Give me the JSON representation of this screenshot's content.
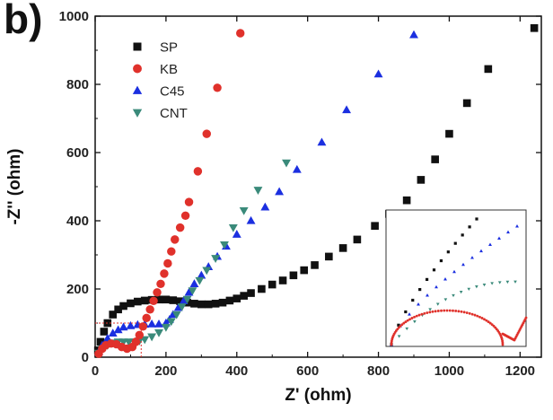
{
  "panel_label": "b)",
  "chart_data": {
    "type": "scatter",
    "xlabel": "Z' (ohm)",
    "ylabel": "-Z'' (ohm)",
    "xlim": [
      0,
      1260
    ],
    "ylim": [
      0,
      1000
    ],
    "xticks": [
      0,
      200,
      400,
      600,
      800,
      1000,
      1200
    ],
    "yticks": [
      0,
      200,
      400,
      600,
      800,
      1000
    ],
    "grid": false,
    "legend_position": "top-left",
    "series": [
      {
        "name": "SP",
        "marker": "square",
        "color": "#111111",
        "points": [
          [
            8,
            20
          ],
          [
            15,
            45
          ],
          [
            25,
            75
          ],
          [
            35,
            100
          ],
          [
            50,
            125
          ],
          [
            65,
            140
          ],
          [
            80,
            150
          ],
          [
            100,
            158
          ],
          [
            120,
            163
          ],
          [
            140,
            166
          ],
          [
            160,
            168
          ],
          [
            180,
            169
          ],
          [
            200,
            169
          ],
          [
            220,
            167
          ],
          [
            240,
            164
          ],
          [
            260,
            160
          ],
          [
            280,
            157
          ],
          [
            300,
            155
          ],
          [
            320,
            155
          ],
          [
            340,
            157
          ],
          [
            360,
            160
          ],
          [
            380,
            166
          ],
          [
            400,
            172
          ],
          [
            420,
            180
          ],
          [
            440,
            188
          ],
          [
            470,
            200
          ],
          [
            500,
            213
          ],
          [
            530,
            225
          ],
          [
            560,
            240
          ],
          [
            590,
            255
          ],
          [
            620,
            270
          ],
          [
            660,
            295
          ],
          [
            700,
            320
          ],
          [
            740,
            345
          ],
          [
            790,
            385
          ],
          [
            830,
            420
          ],
          [
            880,
            460
          ],
          [
            920,
            520
          ],
          [
            960,
            580
          ],
          [
            1000,
            655
          ],
          [
            1050,
            745
          ],
          [
            1110,
            845
          ],
          [
            1240,
            965
          ]
        ]
      },
      {
        "name": "KB",
        "marker": "circle",
        "color": "#e0312b",
        "points": [
          [
            10,
            10
          ],
          [
            20,
            25
          ],
          [
            30,
            35
          ],
          [
            45,
            40
          ],
          [
            60,
            38
          ],
          [
            75,
            30
          ],
          [
            90,
            25
          ],
          [
            105,
            30
          ],
          [
            115,
            45
          ],
          [
            125,
            65
          ],
          [
            135,
            90
          ],
          [
            145,
            115
          ],
          [
            155,
            140
          ],
          [
            165,
            165
          ],
          [
            175,
            190
          ],
          [
            185,
            215
          ],
          [
            195,
            245
          ],
          [
            205,
            275
          ],
          [
            215,
            310
          ],
          [
            225,
            345
          ],
          [
            240,
            380
          ],
          [
            255,
            415
          ],
          [
            265,
            455
          ],
          [
            290,
            545
          ],
          [
            315,
            655
          ],
          [
            345,
            790
          ],
          [
            410,
            950
          ]
        ]
      },
      {
        "name": "C45",
        "marker": "triangle-up",
        "color": "#1b2fe0",
        "points": [
          [
            10,
            15
          ],
          [
            20,
            35
          ],
          [
            35,
            55
          ],
          [
            50,
            70
          ],
          [
            65,
            80
          ],
          [
            80,
            88
          ],
          [
            100,
            92
          ],
          [
            120,
            95
          ],
          [
            140,
            96
          ],
          [
            160,
            97
          ],
          [
            180,
            97
          ],
          [
            200,
            100
          ],
          [
            210,
            110
          ],
          [
            220,
            125
          ],
          [
            235,
            145
          ],
          [
            250,
            165
          ],
          [
            265,
            190
          ],
          [
            280,
            215
          ],
          [
            300,
            240
          ],
          [
            320,
            265
          ],
          [
            345,
            295
          ],
          [
            370,
            325
          ],
          [
            400,
            360
          ],
          [
            440,
            400
          ],
          [
            480,
            440
          ],
          [
            520,
            485
          ],
          [
            570,
            550
          ],
          [
            640,
            630
          ],
          [
            710,
            725
          ],
          [
            800,
            830
          ],
          [
            900,
            945
          ]
        ]
      },
      {
        "name": "CNT",
        "marker": "triangle-down",
        "color": "#3a8a7a",
        "points": [
          [
            10,
            12
          ],
          [
            20,
            25
          ],
          [
            35,
            35
          ],
          [
            50,
            42
          ],
          [
            65,
            45
          ],
          [
            80,
            45
          ],
          [
            95,
            45
          ],
          [
            110,
            45
          ],
          [
            125,
            48
          ],
          [
            140,
            52
          ],
          [
            160,
            60
          ],
          [
            180,
            72
          ],
          [
            200,
            88
          ],
          [
            215,
            105
          ],
          [
            230,
            125
          ],
          [
            245,
            148
          ],
          [
            260,
            170
          ],
          [
            275,
            195
          ],
          [
            295,
            225
          ],
          [
            315,
            255
          ],
          [
            340,
            290
          ],
          [
            365,
            330
          ],
          [
            390,
            380
          ],
          [
            420,
            430
          ],
          [
            460,
            490
          ],
          [
            540,
            570
          ]
        ]
      }
    ]
  },
  "inset": {
    "description": "zoomed low-frequency region",
    "series": [
      {
        "name": "SP",
        "color": "#111111",
        "marker": "square"
      },
      {
        "name": "KB",
        "color": "#e0312b",
        "marker": "circle"
      },
      {
        "name": "C45",
        "color": "#1b2fe0",
        "marker": "triangle-up"
      },
      {
        "name": "CNT",
        "color": "#3a8a7a",
        "marker": "triangle-down"
      }
    ]
  }
}
